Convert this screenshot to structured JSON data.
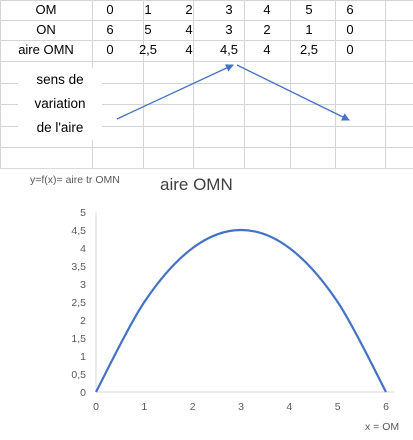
{
  "table": {
    "rows": [
      {
        "label": "OM",
        "values": [
          "0",
          "1",
          "2",
          "3",
          "4",
          "5",
          "6"
        ]
      },
      {
        "label": "ON",
        "values": [
          "6",
          "5",
          "4",
          "3",
          "2",
          "1",
          "0"
        ]
      },
      {
        "label": "aire OMN",
        "values": [
          "0",
          "2,5",
          "4",
          "4,5",
          "4",
          "2,5",
          "0"
        ]
      }
    ],
    "variation_label": [
      "sens de",
      "variation",
      "de l'aire"
    ]
  },
  "chart_data": {
    "type": "line",
    "title": "aire OMN",
    "ylabel": "y=f(x)= aire tr OMN",
    "xlabel": "x = OM",
    "x_ticks": [
      "0",
      "1",
      "2",
      "3",
      "4",
      "5",
      "6"
    ],
    "y_ticks": [
      "0",
      "0,5",
      "1",
      "1,5",
      "2",
      "2,5",
      "3",
      "3,5",
      "4",
      "4,5",
      "5"
    ],
    "xlim": [
      0,
      6
    ],
    "ylim": [
      0,
      5
    ],
    "grid": false,
    "series": [
      {
        "x": [
          0,
          1,
          2,
          3,
          4,
          5,
          6
        ],
        "y": [
          0,
          2.5,
          4,
          4.5,
          4,
          2.5,
          0
        ],
        "color": "#4472C4",
        "smooth": true
      }
    ]
  },
  "colors": {
    "line": "#4472C4",
    "arrow": "#4472C4",
    "grid": "#d4d4d4",
    "axis": "#d9d9d9"
  }
}
